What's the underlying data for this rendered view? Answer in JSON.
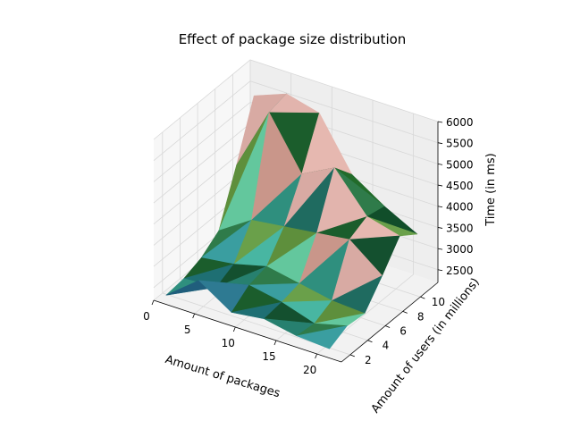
{
  "chart_data": {
    "type": "surface3d",
    "title": "Effect of package size distribution",
    "xlabel": "Amount of packages",
    "ylabel": "Amount of users (in millions)",
    "zlabel": "Time (in ms)",
    "x_ticks": [
      0,
      5,
      10,
      15,
      20
    ],
    "y_ticks": [
      2,
      4,
      6,
      8,
      10
    ],
    "z_ticks": [
      2500,
      3000,
      3500,
      4000,
      4500,
      5000,
      5500,
      6000
    ],
    "xlim": [
      0,
      23
    ],
    "ylim": [
      1,
      12
    ],
    "zlim": [
      2200,
      6000
    ],
    "grid": true,
    "surface_x": [
      1,
      5,
      9,
      13,
      17,
      21
    ],
    "surface_y": [
      1.5,
      3.5,
      5.5,
      7.5,
      9.5,
      11.5
    ],
    "surface_z": [
      [
        2300,
        2900,
        2400,
        2500,
        2350,
        2300
      ],
      [
        2350,
        2400,
        2700,
        2550,
        2300,
        2500
      ],
      [
        2500,
        2600,
        2800,
        2650,
        2500,
        2450
      ],
      [
        2800,
        3300,
        3400,
        3500,
        3600,
        3000
      ],
      [
        4000,
        5500,
        4300,
        4700,
        3800,
        3600
      ],
      [
        5300,
        5600,
        5400,
        4200,
        3700,
        3300
      ]
    ],
    "face_colors": [
      "#205e7c",
      "#2e7a92",
      "#1e6f73",
      "#27806f",
      "#3a9ea0",
      "#48b6a2",
      "#63c79d",
      "#2f8f7e",
      "#1f6b60",
      "#1b5d2c",
      "#14502f",
      "#2f7b4a",
      "#6aa04a",
      "#5e8f3c",
      "#c9968a",
      "#d8aaa3",
      "#e2b4ad",
      "#e6b8b0",
      "#226b2a",
      "#114e2a",
      "#5a8f2a",
      "#2f8040",
      "#3f9a55",
      "#6fbd6a"
    ]
  }
}
